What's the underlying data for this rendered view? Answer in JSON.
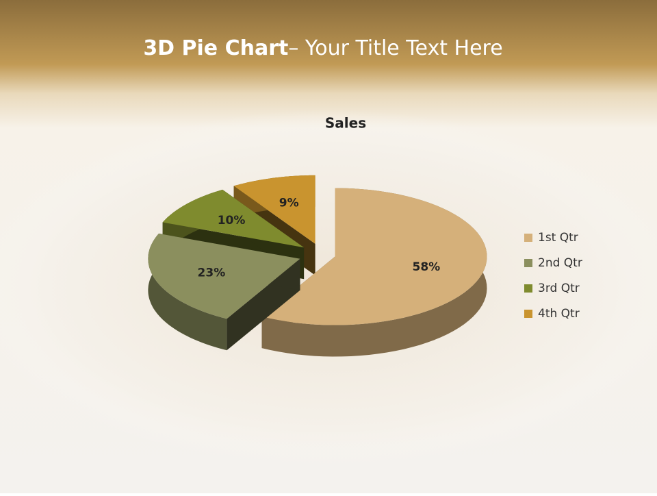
{
  "slide": {
    "title_bold": "3D Pie Chart",
    "title_rest": "– Your Title Text Here"
  },
  "chart_data": {
    "type": "pie",
    "title": "Sales",
    "categories": [
      "1st Qtr",
      "2nd Qtr",
      "3rd Qtr",
      "4th Qtr"
    ],
    "values": [
      58,
      23,
      10,
      9
    ],
    "value_labels": [
      "58%",
      "23%",
      "10%",
      "9%"
    ],
    "colors": [
      "#d5b07a",
      "#8b8f5e",
      "#7f8b2e",
      "#c9942f"
    ],
    "legend": "right"
  }
}
